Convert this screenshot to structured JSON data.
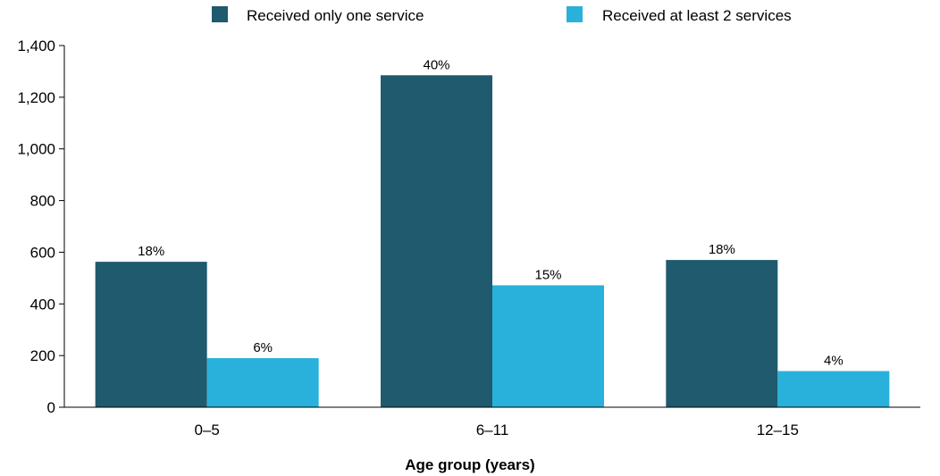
{
  "chart_data": {
    "type": "bar",
    "categories": [
      "0–5",
      "6–11",
      "12–15"
    ],
    "series": [
      {
        "name": "Received only one service",
        "color": "#1f5a6e",
        "values": [
          563,
          1285,
          570
        ],
        "labels": [
          "18%",
          "40%",
          "18%"
        ]
      },
      {
        "name": "Received at least 2 services",
        "color": "#29b1db",
        "values": [
          190,
          472,
          140
        ],
        "labels": [
          "6%",
          "15%",
          "4%"
        ]
      }
    ],
    "xlabel": "Age group (years)",
    "ylabel": "",
    "ylim": [
      0,
      1400
    ],
    "yticks": [
      0,
      200,
      400,
      600,
      800,
      1000,
      1200,
      1400
    ],
    "ytick_labels": [
      "0",
      "200",
      "400",
      "600",
      "800",
      "1,000",
      "1,200",
      "1,400"
    ],
    "grid": false,
    "legend_position": "top"
  }
}
